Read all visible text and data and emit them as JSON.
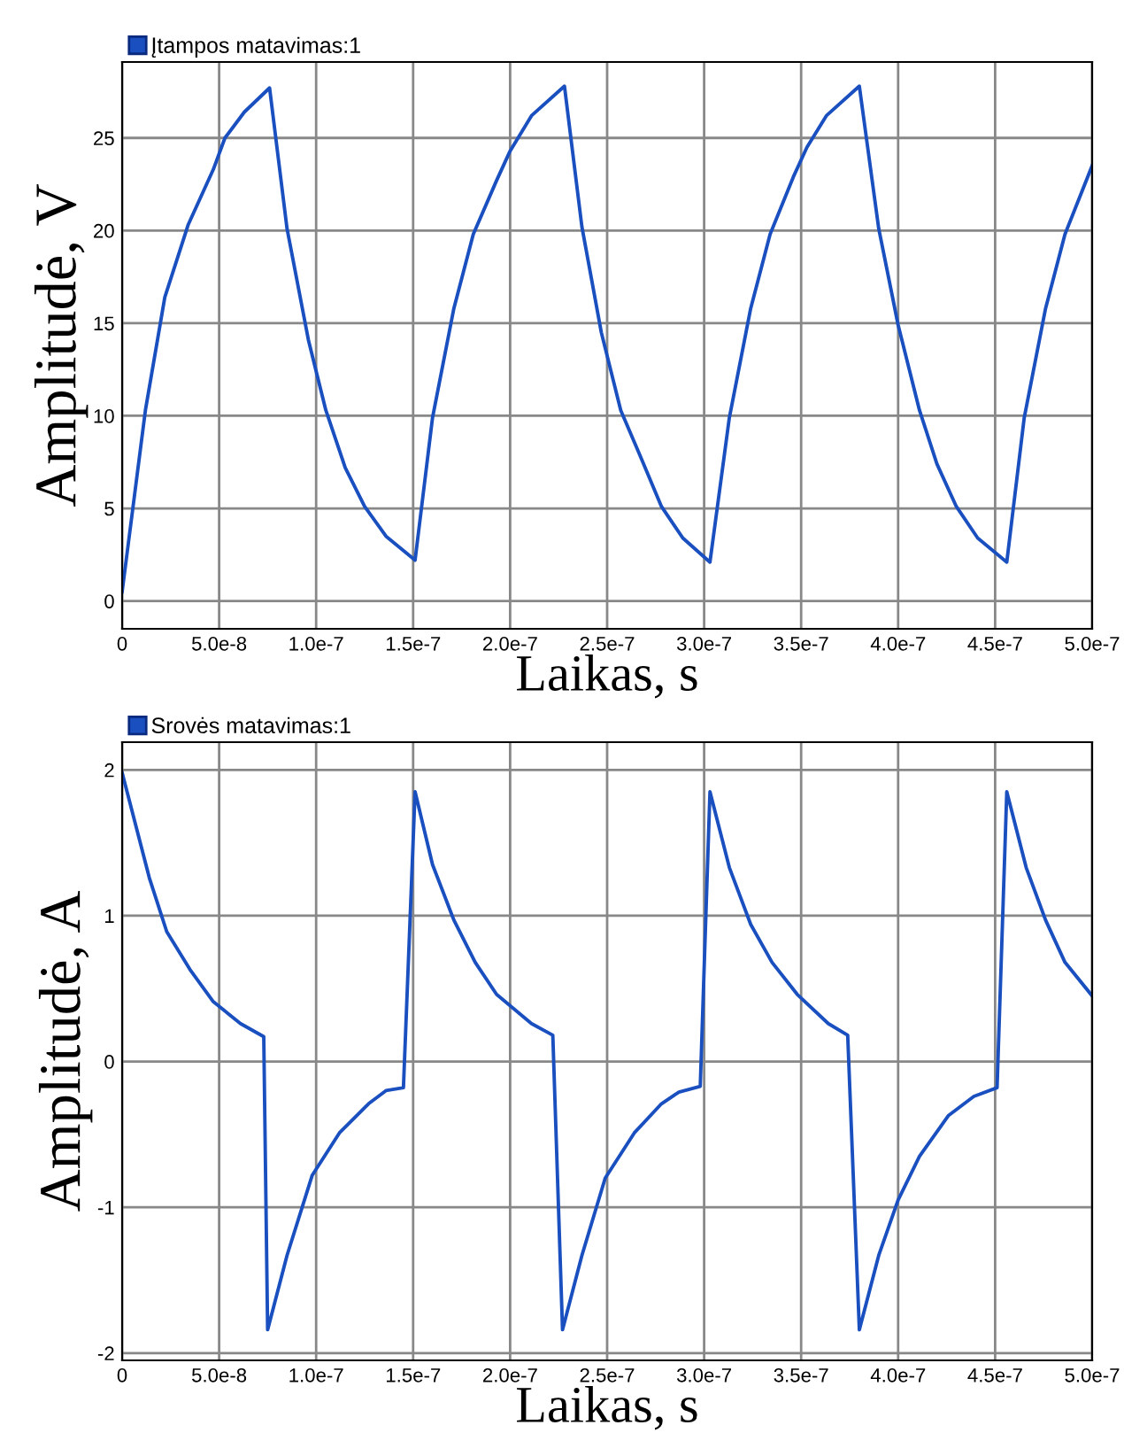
{
  "chart_data": [
    {
      "type": "line",
      "xlabel": "Laikas, s",
      "ylabel": "Amplitudė, V",
      "legend": "top left",
      "grid": true,
      "marker": "none",
      "line_style": "solid",
      "xlim": [
        0,
        5e-07
      ],
      "xticks": [
        {
          "value": 0,
          "label": "0"
        },
        {
          "value": 5e-08,
          "label": "5.0e-8"
        },
        {
          "value": 1e-07,
          "label": "1.0e-7"
        },
        {
          "value": 1.5e-07,
          "label": "1.5e-7"
        },
        {
          "value": 2e-07,
          "label": "2.0e-7"
        },
        {
          "value": 2.5e-07,
          "label": "2.5e-7"
        },
        {
          "value": 3e-07,
          "label": "3.0e-7"
        },
        {
          "value": 3.5e-07,
          "label": "3.5e-7"
        },
        {
          "value": 4e-07,
          "label": "4.0e-7"
        },
        {
          "value": 4.5e-07,
          "label": "4.5e-7"
        },
        {
          "value": 5e-07,
          "label": "5.0e-7"
        }
      ],
      "ylim": [
        -1.5,
        29.1
      ],
      "yticks": [
        0,
        5,
        10,
        15,
        20,
        25
      ],
      "series": [
        {
          "name": "Įtampos matavimas:1",
          "color": "#1a4fc0",
          "x": [
            0,
            1.2e-08,
            2.2e-08,
            3.4e-08,
            4.7e-08,
            5.3e-08,
            6.3e-08,
            7.6e-08,
            8.5e-08,
            9.6e-08,
            1.05e-07,
            1.15e-07,
            1.25e-07,
            1.36e-07,
            1.51e-07,
            1.6e-07,
            1.71e-07,
            1.81e-07,
            1.93e-07,
            2e-07,
            2.11e-07,
            2.28e-07,
            2.37e-07,
            2.47e-07,
            2.57e-07,
            2.68e-07,
            2.78e-07,
            2.89e-07,
            3.03e-07,
            3.13e-07,
            3.24e-07,
            3.34e-07,
            3.46e-07,
            3.53e-07,
            3.63e-07,
            3.8e-07,
            3.9e-07,
            4e-07,
            4.11e-07,
            4.2e-07,
            4.3e-07,
            4.41e-07,
            4.56e-07,
            4.65e-07,
            4.76e-07,
            4.86e-07,
            5e-07
          ],
          "values": [
            0.5,
            10.3,
            16.4,
            20.3,
            23.3,
            25.0,
            26.4,
            27.7,
            20.1,
            14.1,
            10.3,
            7.2,
            5.1,
            3.5,
            2.2,
            9.9,
            15.8,
            19.8,
            22.7,
            24.3,
            26.2,
            27.8,
            20.2,
            14.5,
            10.3,
            7.6,
            5.1,
            3.4,
            2.1,
            9.9,
            15.8,
            19.8,
            22.9,
            24.5,
            26.2,
            27.8,
            20.1,
            14.9,
            10.3,
            7.4,
            5.1,
            3.4,
            2.1,
            9.9,
            15.8,
            19.8,
            23.5
          ]
        }
      ]
    },
    {
      "type": "line",
      "xlabel": "Laikas, s",
      "ylabel": "Amplitudė, A",
      "legend": "top left",
      "grid": true,
      "marker": "none",
      "line_style": "solid",
      "xlim": [
        0,
        5e-07
      ],
      "xticks": [
        {
          "value": 0,
          "label": "0"
        },
        {
          "value": 5e-08,
          "label": "5.0e-8"
        },
        {
          "value": 1e-07,
          "label": "1.0e-7"
        },
        {
          "value": 1.5e-07,
          "label": "1.5e-7"
        },
        {
          "value": 2e-07,
          "label": "2.0e-7"
        },
        {
          "value": 2.5e-07,
          "label": "2.5e-7"
        },
        {
          "value": 3e-07,
          "label": "3.0e-7"
        },
        {
          "value": 3.5e-07,
          "label": "3.5e-7"
        },
        {
          "value": 4e-07,
          "label": "4.0e-7"
        },
        {
          "value": 4.5e-07,
          "label": "4.5e-7"
        },
        {
          "value": 5e-07,
          "label": "5.0e-7"
        }
      ],
      "ylim": [
        -2.05,
        2.19
      ],
      "yticks": [
        -2,
        -1,
        0,
        1,
        2
      ],
      "series": [
        {
          "name": "Srovės matavimas:1",
          "color": "#1a4fc0",
          "x": [
            0,
            1.4e-08,
            2.3e-08,
            3.5e-08,
            4.7e-08,
            6.1e-08,
            7.3e-08,
            7.5e-08,
            8.5e-08,
            9.8e-08,
            1.12e-07,
            1.27e-07,
            1.36e-07,
            1.45e-07,
            1.51e-07,
            1.6e-07,
            1.71e-07,
            1.82e-07,
            1.93e-07,
            2.11e-07,
            2.22e-07,
            2.27e-07,
            2.37e-07,
            2.49e-07,
            2.64e-07,
            2.78e-07,
            2.87e-07,
            2.98e-07,
            3.03e-07,
            3.13e-07,
            3.24e-07,
            3.35e-07,
            3.48e-07,
            3.64e-07,
            3.74e-07,
            3.8e-07,
            3.9e-07,
            4e-07,
            4.11e-07,
            4.26e-07,
            4.39e-07,
            4.51e-07,
            4.56e-07,
            4.66e-07,
            4.76e-07,
            4.86e-07,
            5e-07
          ],
          "values": [
            1.98,
            1.26,
            0.89,
            0.63,
            0.41,
            0.26,
            0.17,
            -1.84,
            -1.33,
            -0.78,
            -0.49,
            -0.29,
            -0.2,
            -0.18,
            1.85,
            1.35,
            0.97,
            0.68,
            0.46,
            0.26,
            0.18,
            -1.84,
            -1.33,
            -0.8,
            -0.49,
            -0.29,
            -0.21,
            -0.17,
            1.85,
            1.33,
            0.94,
            0.68,
            0.46,
            0.26,
            0.18,
            -1.84,
            -1.33,
            -0.95,
            -0.65,
            -0.37,
            -0.24,
            -0.18,
            1.85,
            1.33,
            0.97,
            0.68,
            0.45
          ]
        }
      ]
    }
  ]
}
